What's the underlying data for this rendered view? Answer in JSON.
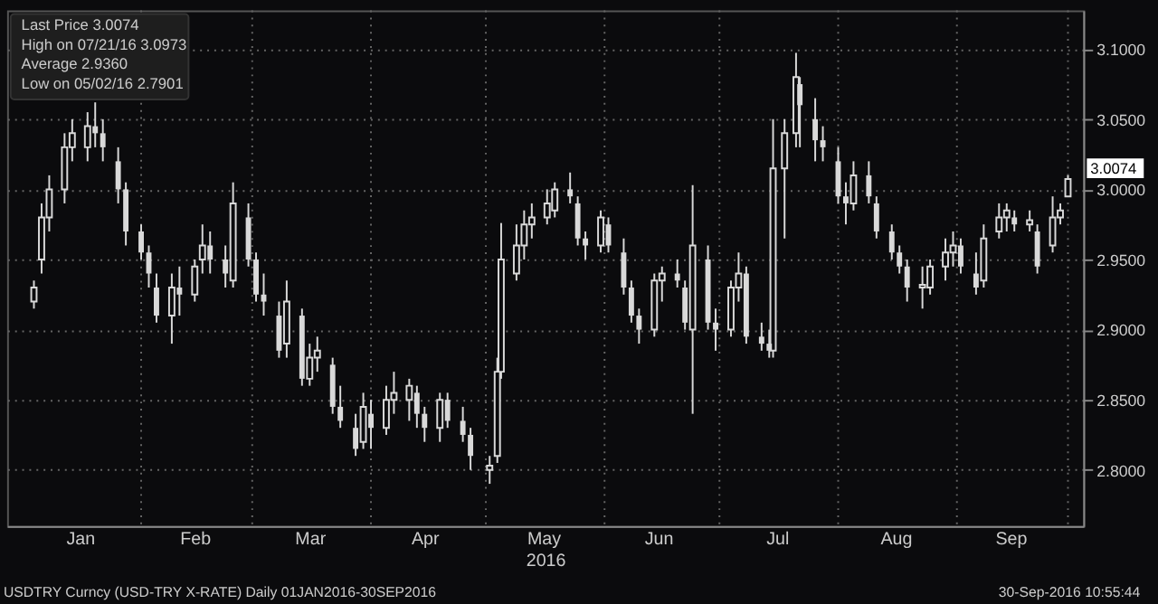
{
  "chart_data": {
    "type": "candlestick",
    "xlabel": "2016",
    "x": [
      "2016-01-04",
      "2016-01-06",
      "2016-01-08",
      "2016-01-12",
      "2016-01-14",
      "2016-01-18",
      "2016-01-20",
      "2016-01-22",
      "2016-01-26",
      "2016-01-28",
      "2016-02-01",
      "2016-02-03",
      "2016-02-05",
      "2016-02-09",
      "2016-02-11",
      "2016-02-15",
      "2016-02-17",
      "2016-02-19",
      "2016-02-23",
      "2016-02-25",
      "2016-02-29",
      "2016-03-02",
      "2016-03-04",
      "2016-03-08",
      "2016-03-10",
      "2016-03-14",
      "2016-03-16",
      "2016-03-18",
      "2016-03-22",
      "2016-03-24",
      "2016-03-28",
      "2016-03-30",
      "2016-04-01",
      "2016-04-05",
      "2016-04-07",
      "2016-04-11",
      "2016-04-13",
      "2016-04-15",
      "2016-04-19",
      "2016-04-21",
      "2016-04-25",
      "2016-04-27",
      "2016-05-02",
      "2016-05-04",
      "2016-05-05",
      "2016-05-09",
      "2016-05-11",
      "2016-05-13",
      "2016-05-17",
      "2016-05-19",
      "2016-05-23",
      "2016-05-25",
      "2016-05-27",
      "2016-05-31",
      "2016-06-02",
      "2016-06-06",
      "2016-06-08",
      "2016-06-10",
      "2016-06-14",
      "2016-06-16",
      "2016-06-20",
      "2016-06-22",
      "2016-06-24",
      "2016-06-28",
      "2016-06-30",
      "2016-07-04",
      "2016-07-06",
      "2016-07-08",
      "2016-07-12",
      "2016-07-14",
      "2016-07-15",
      "2016-07-18",
      "2016-07-21",
      "2016-07-22",
      "2016-07-26",
      "2016-07-28",
      "2016-08-01",
      "2016-08-03",
      "2016-08-05",
      "2016-08-09",
      "2016-08-11",
      "2016-08-15",
      "2016-08-17",
      "2016-08-19",
      "2016-08-23",
      "2016-08-25",
      "2016-08-29",
      "2016-08-31",
      "2016-09-02",
      "2016-09-06",
      "2016-09-08",
      "2016-09-12",
      "2016-09-14",
      "2016-09-16",
      "2016-09-20",
      "2016-09-22",
      "2016-09-26",
      "2016-09-28",
      "2016-09-30"
    ],
    "ohlc": [
      [
        2.92,
        2.935,
        2.915,
        2.93
      ],
      [
        2.95,
        2.99,
        2.94,
        2.98
      ],
      [
        2.98,
        3.01,
        2.97,
        3.0
      ],
      [
        3.0,
        3.04,
        2.99,
        3.03
      ],
      [
        3.03,
        3.05,
        3.02,
        3.04
      ],
      [
        3.03,
        3.055,
        3.02,
        3.045
      ],
      [
        3.045,
        3.062,
        3.03,
        3.04
      ],
      [
        3.04,
        3.05,
        3.02,
        3.03
      ],
      [
        3.02,
        3.03,
        2.99,
        3.0
      ],
      [
        3.0,
        3.005,
        2.96,
        2.97
      ],
      [
        2.97,
        2.975,
        2.95,
        2.955
      ],
      [
        2.955,
        2.96,
        2.93,
        2.94
      ],
      [
        2.93,
        2.94,
        2.905,
        2.91
      ],
      [
        2.91,
        2.94,
        2.89,
        2.93
      ],
      [
        2.93,
        2.945,
        2.91,
        2.925
      ],
      [
        2.925,
        2.95,
        2.92,
        2.945
      ],
      [
        2.95,
        2.975,
        2.94,
        2.96
      ],
      [
        2.96,
        2.97,
        2.94,
        2.95
      ],
      [
        2.95,
        2.96,
        2.93,
        2.94
      ],
      [
        2.935,
        3.005,
        2.93,
        2.99
      ],
      [
        2.98,
        2.99,
        2.945,
        2.95
      ],
      [
        2.95,
        2.955,
        2.92,
        2.925
      ],
      [
        2.925,
        2.94,
        2.91,
        2.92
      ],
      [
        2.91,
        2.92,
        2.88,
        2.885
      ],
      [
        2.89,
        2.935,
        2.88,
        2.92
      ],
      [
        2.91,
        2.915,
        2.86,
        2.865
      ],
      [
        2.865,
        2.89,
        2.86,
        2.88
      ],
      [
        2.88,
        2.895,
        2.87,
        2.885
      ],
      [
        2.875,
        2.88,
        2.84,
        2.845
      ],
      [
        2.845,
        2.86,
        2.83,
        2.835
      ],
      [
        2.83,
        2.84,
        2.81,
        2.815
      ],
      [
        2.82,
        2.855,
        2.815,
        2.845
      ],
      [
        2.84,
        2.85,
        2.815,
        2.83
      ],
      [
        2.83,
        2.86,
        2.825,
        2.85
      ],
      [
        2.85,
        2.87,
        2.84,
        2.855
      ],
      [
        2.85,
        2.865,
        2.835,
        2.86
      ],
      [
        2.855,
        2.86,
        2.83,
        2.84
      ],
      [
        2.84,
        2.845,
        2.82,
        2.83
      ],
      [
        2.83,
        2.855,
        2.82,
        2.85
      ],
      [
        2.85,
        2.855,
        2.83,
        2.835
      ],
      [
        2.835,
        2.845,
        2.82,
        2.825
      ],
      [
        2.825,
        2.83,
        2.8,
        2.81
      ],
      [
        2.8,
        2.81,
        2.7901,
        2.803
      ],
      [
        2.81,
        2.88,
        2.805,
        2.87
      ],
      [
        2.87,
        2.976,
        2.865,
        2.95
      ],
      [
        2.94,
        2.975,
        2.935,
        2.96
      ],
      [
        2.96,
        2.985,
        2.95,
        2.975
      ],
      [
        2.975,
        2.99,
        2.965,
        2.98
      ],
      [
        2.98,
        3.0,
        2.975,
        2.99
      ],
      [
        2.985,
        3.005,
        2.98,
        3.0
      ],
      [
        3.0,
        3.012,
        2.99,
        2.995
      ],
      [
        2.99,
        2.995,
        2.96,
        2.965
      ],
      [
        2.965,
        2.97,
        2.95,
        2.96
      ],
      [
        2.96,
        2.985,
        2.955,
        2.98
      ],
      [
        2.975,
        2.98,
        2.955,
        2.96
      ],
      [
        2.955,
        2.965,
        2.925,
        2.93
      ],
      [
        2.93,
        2.935,
        2.905,
        2.91
      ],
      [
        2.91,
        2.915,
        2.89,
        2.9
      ],
      [
        2.9,
        2.94,
        2.895,
        2.935
      ],
      [
        2.935,
        2.945,
        2.92,
        2.94
      ],
      [
        2.94,
        2.95,
        2.93,
        2.935
      ],
      [
        2.93,
        2.935,
        2.9,
        2.905
      ],
      [
        2.9,
        3.003,
        2.84,
        2.96
      ],
      [
        2.95,
        2.96,
        2.9,
        2.905
      ],
      [
        2.905,
        2.915,
        2.885,
        2.9
      ],
      [
        2.9,
        2.935,
        2.895,
        2.93
      ],
      [
        2.93,
        2.955,
        2.92,
        2.94
      ],
      [
        2.94,
        2.945,
        2.89,
        2.895
      ],
      [
        2.895,
        2.905,
        2.885,
        2.89
      ],
      [
        2.89,
        2.9,
        2.88,
        2.885
      ],
      [
        2.885,
        3.05,
        2.88,
        3.015
      ],
      [
        3.015,
        3.05,
        2.965,
        3.04
      ],
      [
        3.04,
        3.0973,
        3.03,
        3.08
      ],
      [
        3.075,
        3.08,
        3.03,
        3.06
      ],
      [
        3.05,
        3.065,
        3.02,
        3.035
      ],
      [
        3.035,
        3.045,
        3.02,
        3.03
      ],
      [
        3.02,
        3.03,
        2.99,
        2.995
      ],
      [
        2.995,
        3.005,
        2.975,
        2.99
      ],
      [
        2.99,
        3.02,
        2.985,
        3.01
      ],
      [
        3.01,
        3.02,
        2.99,
        2.995
      ],
      [
        2.99,
        2.995,
        2.965,
        2.97
      ],
      [
        2.97,
        2.975,
        2.95,
        2.955
      ],
      [
        2.955,
        2.96,
        2.94,
        2.945
      ],
      [
        2.945,
        2.95,
        2.92,
        2.93
      ],
      [
        2.93,
        2.945,
        2.915,
        2.932
      ],
      [
        2.93,
        2.95,
        2.925,
        2.945
      ],
      [
        2.945,
        2.965,
        2.935,
        2.955
      ],
      [
        2.955,
        2.97,
        2.945,
        2.96
      ],
      [
        2.96,
        2.965,
        2.94,
        2.945
      ],
      [
        2.94,
        2.955,
        2.925,
        2.93
      ],
      [
        2.935,
        2.975,
        2.93,
        2.965
      ],
      [
        2.97,
        2.99,
        2.965,
        2.98
      ],
      [
        2.98,
        2.99,
        2.97,
        2.985
      ],
      [
        2.98,
        2.985,
        2.97,
        2.975
      ],
      [
        2.975,
        2.985,
        2.97,
        2.978
      ],
      [
        2.97,
        2.975,
        2.94,
        2.945
      ],
      [
        2.96,
        2.995,
        2.955,
        2.98
      ],
      [
        2.98,
        2.99,
        2.975,
        2.985
      ],
      [
        2.995,
        3.01,
        2.995,
        3.0074
      ]
    ],
    "colors": [
      "#d9d9d9",
      "#d9d9d9",
      "#d9d9d9",
      "#d9d9d9",
      "#d9d9d9",
      "#d9d9d9",
      "#d9d9d9",
      "#d9d9d9",
      "#d9d9d9",
      "#d9d9d9",
      "#d9d9d9",
      "#d9d9d9",
      "#d9d9d9",
      "#d9d9d9",
      "#d9d9d9",
      "#d9d9d9",
      "#d9d9d9",
      "#d9d9d9",
      "#d9d9d9",
      "#d9d9d9",
      "#d9d9d9",
      "#d9d9d9",
      "#d9d9d9",
      "#d9d9d9",
      "#d9d9d9",
      "#d9d9d9",
      "#d9d9d9",
      "#d9d9d9",
      "#d9d9d9",
      "#d9d9d9",
      "#d9d9d9",
      "#d9d9d9",
      "#d9d9d9",
      "#d9d9d9",
      "#d9d9d9",
      "#d9d9d9",
      "#d9d9d9",
      "#d9d9d9",
      "#d9d9d9",
      "#d9d9d9",
      "#d9d9d9",
      "#d9d9d9",
      "#d9d9d9",
      "#d9d9d9",
      "#d9d9d9",
      "#d9d9d9",
      "#d9d9d9",
      "#d9d9d9",
      "#d9d9d9",
      "#d9d9d9",
      "#d9d9d9",
      "#d9d9d9",
      "#d9d9d9",
      "#d9d9d9",
      "#d9d9d9",
      "#d9d9d9",
      "#d9d9d9",
      "#d9d9d9",
      "#d9d9d9",
      "#d9d9d9",
      "#d9d9d9",
      "#d9d9d9",
      "#d9d9d9",
      "#d9d9d9",
      "#d9d9d9",
      "#d9d9d9",
      "#d9d9d9",
      "#d9d9d9",
      "#d9d9d9",
      "#d9d9d9",
      "#d9d9d9",
      "#d9d9d9",
      "#d9d9d9",
      "#d9d9d9",
      "#d9d9d9",
      "#d9d9d9",
      "#d9d9d9",
      "#d9d9d9",
      "#d9d9d9",
      "#d9d9d9",
      "#d9d9d9",
      "#d9d9d9",
      "#d9d9d9",
      "#d9d9d9",
      "#d9d9d9",
      "#d9d9d9",
      "#d9d9d9",
      "#d9d9d9",
      "#d9d9d9",
      "#d9d9d9",
      "#d9d9d9",
      "#d9d9d9",
      "#d9d9d9",
      "#d9d9d9",
      "#d9d9d9",
      "#d9d9d9",
      "#d9d9d9",
      "#d9d9d9",
      "#d9d9d9"
    ],
    "xlim": [
      "2015-12-28",
      "2016-10-04"
    ],
    "xticks": [
      {
        "value": "2016-01-16",
        "label": "Jan"
      },
      {
        "value": "2016-02-01",
        "label": null
      },
      {
        "value": "2016-02-15",
        "label": "Feb"
      },
      {
        "value": "2016-03-01",
        "label": null
      },
      {
        "value": "2016-03-16",
        "label": "Mar"
      },
      {
        "value": "2016-04-01",
        "label": null
      },
      {
        "value": "2016-04-15",
        "label": "Apr"
      },
      {
        "value": "2016-05-01",
        "label": null
      },
      {
        "value": "2016-05-16",
        "label": "May"
      },
      {
        "value": "2016-06-01",
        "label": null
      },
      {
        "value": "2016-06-15",
        "label": "Jun"
      },
      {
        "value": "2016-07-01",
        "label": null
      },
      {
        "value": "2016-07-16",
        "label": "Jul"
      },
      {
        "value": "2016-08-01",
        "label": null
      },
      {
        "value": "2016-08-16",
        "label": "Aug"
      },
      {
        "value": "2016-09-01",
        "label": null
      },
      {
        "value": "2016-09-15",
        "label": "Sep"
      },
      {
        "value": "2016-09-30",
        "label": null
      }
    ],
    "ylim": [
      2.76,
      3.1275
    ],
    "yticks": [
      {
        "value": 2.8,
        "label": "2.8000"
      },
      {
        "value": 2.85,
        "label": "2.8500"
      },
      {
        "value": 2.9,
        "label": "2.9000"
      },
      {
        "value": 2.95,
        "label": "2.9500"
      },
      {
        "value": 3.0,
        "label": "3.0000"
      },
      {
        "value": 3.05,
        "label": "3.0500"
      },
      {
        "value": 3.1,
        "label": "3.1000"
      }
    ],
    "grid": true,
    "annotations": [
      "Last Price            3.0074",
      "High on 07/21/16 3.0973",
      "Average               2.9360",
      "Low on 05/02/16  2.7901",
      "USDTRY Curncy (USD-TRY X-RATE)  Daily 01JAN2016-30SEP2016",
      "30-Sep-2016 10:55:44",
      "3.0074"
    ]
  }
}
